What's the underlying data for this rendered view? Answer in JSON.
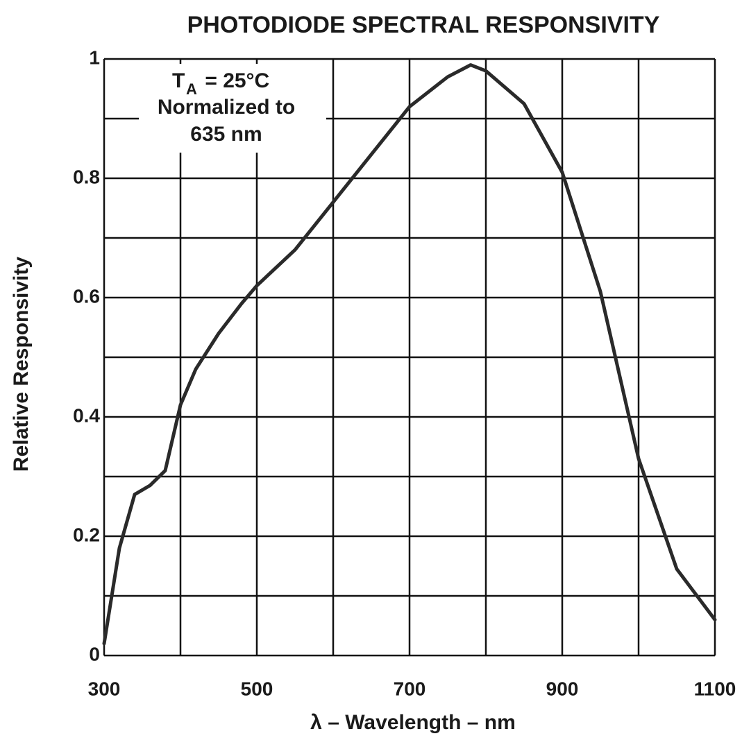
{
  "chart_data": {
    "type": "line",
    "title": "PHOTODIODE SPECTRAL RESPONSIVITY",
    "x_label": "λ – Wavelength – nm",
    "y_label": "Relative Responsivity",
    "annotation": {
      "symbol": "T",
      "subscript": "A",
      "text": " = 25°C",
      "lines": [
        "Normalized to",
        "635 nm"
      ]
    },
    "x": [
      300,
      320,
      340,
      360,
      380,
      400,
      420,
      450,
      480,
      500,
      550,
      600,
      650,
      700,
      750,
      780,
      800,
      850,
      900,
      950,
      1000,
      1050,
      1100
    ],
    "series": [
      {
        "name": "Relative Responsivity",
        "color": "#2a2a2a",
        "values": [
          0.02,
          0.18,
          0.27,
          0.285,
          0.31,
          0.42,
          0.48,
          0.54,
          0.59,
          0.62,
          0.68,
          0.76,
          0.84,
          0.92,
          0.97,
          0.99,
          0.98,
          0.925,
          0.81,
          0.61,
          0.33,
          0.145,
          0.06
        ]
      }
    ],
    "xlim": [
      300,
      1100
    ],
    "ylim": [
      0,
      1
    ],
    "xticks": [
      300,
      500,
      700,
      900,
      1100
    ],
    "xminor": [
      400,
      600,
      800,
      1000
    ],
    "yticks": [
      0,
      0.2,
      0.4,
      0.6,
      0.8,
      1
    ],
    "yminor": [
      0.1,
      0.3,
      0.5,
      0.7,
      0.9
    ],
    "grid": true
  }
}
